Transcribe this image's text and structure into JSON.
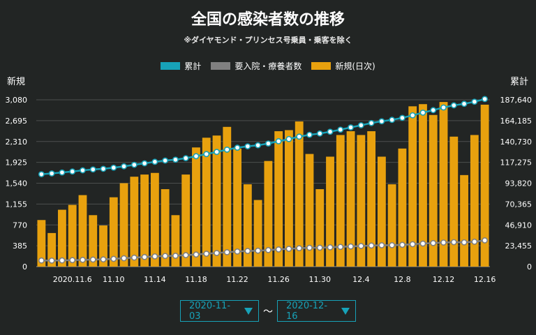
{
  "title": "全国の感染者数の推移",
  "subtitle": "※ダイヤモンド・プリンセス号乗員・乗客を除く",
  "colors": {
    "cumulative": "#17a2b8",
    "hospitalized": "#808080",
    "new": "#e8a10e",
    "background": "#222524"
  },
  "legend": [
    {
      "label": "累計",
      "color": "#17a2b8"
    },
    {
      "label": "要入院・療養者数",
      "color": "#808080"
    },
    {
      "label": "新規(日次)",
      "color": "#e8a10e"
    }
  ],
  "controls": {
    "start_date": "2020-11-03",
    "end_date": "2020-12-16",
    "separator": "～"
  },
  "chart_data": {
    "type": "bar",
    "ylabel_left": "新規",
    "ylabel_right": "累計",
    "left_ticks": [
      "0",
      "385",
      "770",
      "1,155",
      "1,540",
      "1,925",
      "2,310",
      "2,695",
      "3,080"
    ],
    "right_ticks": [
      "0",
      "23,455",
      "46,910",
      "70,365",
      "93,820",
      "117,275",
      "140,730",
      "164,185",
      "187,640"
    ],
    "ylim_left": [
      0,
      3080
    ],
    "ylim_right": [
      0,
      187640
    ],
    "x_tick_labels": [
      "2020.11.6",
      "11.10",
      "11.14",
      "11.18",
      "11.22",
      "11.26",
      "11.30",
      "12.4",
      "12.8",
      "12.12",
      "12.16"
    ],
    "x_tick_indices": [
      3,
      7,
      11,
      15,
      19,
      23,
      27,
      31,
      35,
      39,
      43
    ],
    "grid": true,
    "legend_position": "top-center",
    "dates": [
      "11.3",
      "11.4",
      "11.5",
      "11.6",
      "11.7",
      "11.8",
      "11.9",
      "11.10",
      "11.11",
      "11.12",
      "11.13",
      "11.14",
      "11.15",
      "11.16",
      "11.17",
      "11.18",
      "11.19",
      "11.20",
      "11.21",
      "11.22",
      "11.23",
      "11.24",
      "11.25",
      "11.26",
      "11.27",
      "11.28",
      "11.29",
      "11.30",
      "12.1",
      "12.2",
      "12.3",
      "12.4",
      "12.5",
      "12.6",
      "12.7",
      "12.8",
      "12.9",
      "12.10",
      "12.11",
      "12.12",
      "12.13",
      "12.14",
      "12.15",
      "12.16"
    ],
    "series": [
      {
        "name": "新規(日次)",
        "axis": "left",
        "values": [
          860,
          620,
          1050,
          1140,
          1320,
          950,
          760,
          1280,
          1540,
          1660,
          1700,
          1730,
          1430,
          950,
          1700,
          2200,
          2380,
          2420,
          2580,
          2180,
          1520,
          1230,
          1950,
          2500,
          2520,
          2680,
          2080,
          1430,
          2030,
          2430,
          2500,
          2430,
          2500,
          2030,
          1520,
          2180,
          2960,
          3000,
          2800,
          3040,
          2400,
          1690,
          2430,
          2990
        ]
      },
      {
        "name": "累計",
        "axis": "right",
        "values": [
          103900,
          104800,
          105900,
          107000,
          108300,
          109300,
          110000,
          111300,
          112800,
          114500,
          116200,
          117900,
          119300,
          120300,
          122000,
          124200,
          126600,
          129000,
          131600,
          133800,
          135300,
          136500,
          138500,
          141000,
          143500,
          146200,
          148300,
          149700,
          151700,
          154100,
          156600,
          159000,
          161500,
          163500,
          165100,
          167300,
          170200,
          173200,
          176000,
          179000,
          181400,
          183100,
          185500,
          188500
        ]
      },
      {
        "name": "要入院・療養者数",
        "axis": "right",
        "values": [
          6900,
          6800,
          7000,
          7300,
          7600,
          7900,
          8100,
          8700,
          9400,
          10100,
          10800,
          11500,
          12000,
          12200,
          12900,
          13600,
          14500,
          15300,
          16200,
          17000,
          17600,
          17900,
          18600,
          19300,
          20000,
          20700,
          21200,
          21300,
          21700,
          22200,
          22700,
          23200,
          23700,
          24000,
          24100,
          24500,
          25200,
          25900,
          26500,
          27100,
          27500,
          27300,
          28000,
          29500
        ]
      }
    ]
  }
}
